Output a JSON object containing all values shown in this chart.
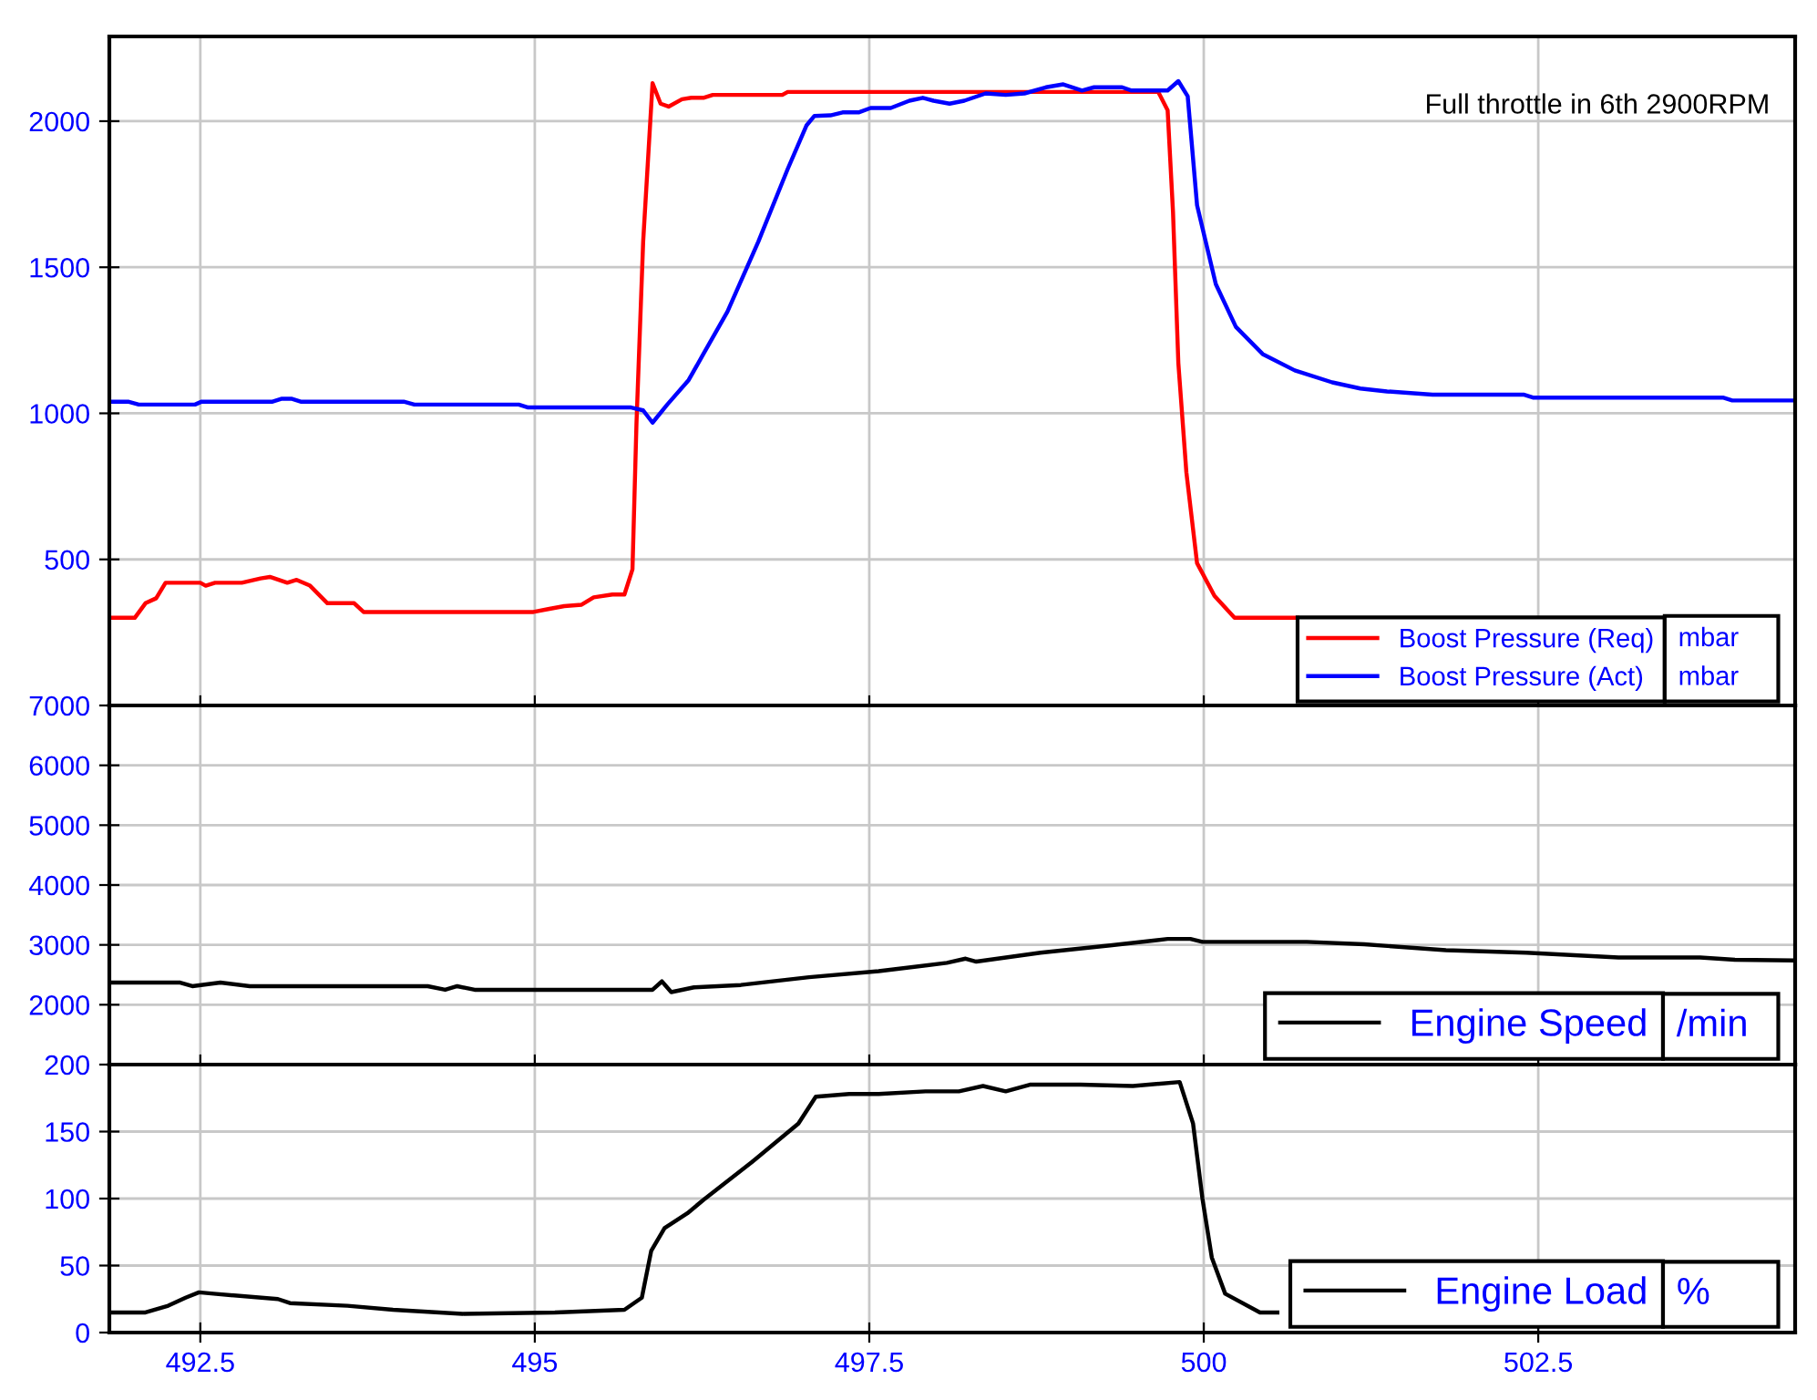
{
  "chart_data": [
    {
      "type": "line",
      "annotations": [
        "Full throttle in 6th 2900RPM"
      ],
      "ylabel": "mbar",
      "xlim": [
        491.82,
        504.42
      ],
      "xticks": [
        492.5,
        495,
        497.5,
        500,
        502.5
      ],
      "ylim": [
        0,
        2290
      ],
      "yticks": [
        500,
        1000,
        1500,
        2000
      ],
      "grid": true,
      "legend": "bottom right",
      "tick_labels": "y",
      "series": [
        {
          "name": "Boost Pressure (Req)",
          "color": "#ff0000",
          "x": [
            491.82,
            492.01,
            492.09,
            492.17,
            492.24,
            492.5,
            492.54,
            492.61,
            492.81,
            492.95,
            493.02,
            493.15,
            493.22,
            493.32,
            493.45,
            493.65,
            493.72,
            494.99,
            495.1,
            495.22,
            495.35,
            495.44,
            495.58,
            495.67,
            495.73,
            495.76,
            495.81,
            495.88,
            495.94,
            496.0,
            496.1,
            496.17,
            496.26,
            496.33,
            496.85,
            496.89,
            499.66,
            499.73,
            499.77,
            499.81,
            499.87,
            499.95,
            500.08,
            500.23,
            500.7
          ],
          "values": [
            300,
            300,
            350,
            367,
            420,
            420,
            410,
            420,
            420,
            435,
            440,
            420,
            430,
            410,
            350,
            350,
            320,
            320,
            330,
            340,
            345,
            370,
            380,
            380,
            466,
            967,
            1589,
            2130,
            2060,
            2050,
            2075,
            2080,
            2080,
            2090,
            2090,
            2100,
            2100,
            2037,
            1690,
            1172,
            798,
            487,
            375,
            300,
            300
          ]
        },
        {
          "name": "Boost Pressure (Act)",
          "color": "#0000ff",
          "x": [
            491.82,
            491.96,
            492.04,
            492.46,
            492.51,
            493.04,
            493.11,
            493.18,
            493.25,
            494.02,
            494.1,
            494.88,
            494.95,
            495.72,
            495.81,
            495.88,
            495.99,
            496.15,
            496.26,
            496.44,
            496.67,
            496.89,
            497.03,
            497.09,
            497.21,
            497.3,
            497.42,
            497.51,
            497.66,
            497.8,
            497.9,
            497.98,
            498.1,
            498.21,
            498.37,
            498.52,
            498.66,
            498.82,
            498.95,
            499.09,
            499.18,
            499.39,
            499.46,
            499.73,
            499.81,
            499.88,
            499.95,
            500.09,
            500.24,
            500.44,
            500.68,
            500.96,
            501.17,
            501.37,
            501.71,
            502.39,
            502.46,
            503.88,
            503.95,
            504.42
          ],
          "values": [
            1040,
            1040,
            1030,
            1030,
            1040,
            1040,
            1050,
            1050,
            1040,
            1040,
            1030,
            1030,
            1020,
            1020,
            1010,
            968,
            1030,
            1114,
            1203,
            1348,
            1587,
            1836,
            1985,
            2018,
            2020,
            2030,
            2030,
            2045,
            2045,
            2070,
            2080,
            2070,
            2060,
            2070,
            2095,
            2090,
            2095,
            2116,
            2126,
            2105,
            2116,
            2116,
            2105,
            2105,
            2137,
            2085,
            1712,
            1442,
            1296,
            1203,
            1147,
            1106,
            1085,
            1075,
            1064,
            1064,
            1054,
            1054,
            1044,
            1044
          ]
        }
      ]
    },
    {
      "type": "line",
      "ylabel": "/min",
      "xlim": [
        491.82,
        504.42
      ],
      "xticks": [
        492.5,
        495,
        497.5,
        500,
        502.5
      ],
      "ylim": [
        1000,
        7000
      ],
      "yticks": [
        2000,
        3000,
        4000,
        5000,
        6000,
        7000
      ],
      "grid": true,
      "legend": "bottom right",
      "tick_labels": "y",
      "series": [
        {
          "name": "Engine Speed",
          "color": "#000000",
          "x": [
            491.82,
            492.35,
            492.44,
            492.65,
            492.87,
            494.2,
            494.33,
            494.42,
            494.55,
            495.88,
            495.95,
            496.02,
            496.19,
            496.54,
            497.05,
            497.57,
            498.08,
            498.22,
            498.3,
            498.78,
            499.3,
            499.73,
            499.9,
            499.99,
            500.77,
            501.2,
            501.81,
            502.41,
            503.1,
            503.71,
            503.97,
            504.4
          ],
          "values": [
            2370,
            2370,
            2310,
            2370,
            2310,
            2310,
            2250,
            2310,
            2250,
            2250,
            2390,
            2210,
            2290,
            2330,
            2460,
            2560,
            2700,
            2770,
            2720,
            2870,
            2990,
            3100,
            3100,
            3050,
            3050,
            3010,
            2910,
            2870,
            2790,
            2790,
            2750,
            2740
          ]
        }
      ]
    },
    {
      "type": "line",
      "ylabel": "%",
      "xlim": [
        491.82,
        504.42
      ],
      "xticks": [
        492.5,
        495,
        497.5,
        500,
        502.5
      ],
      "ylim": [
        0,
        200
      ],
      "yticks": [
        0,
        50,
        100,
        150,
        200
      ],
      "grid": true,
      "legend": "bottom right",
      "series": [
        {
          "name": "Engine Load",
          "color": "#000000",
          "x": [
            491.82,
            492.09,
            492.26,
            492.39,
            492.49,
            492.6,
            493.08,
            493.17,
            493.6,
            493.94,
            494.46,
            495.15,
            495.67,
            495.8,
            495.87,
            495.97,
            496.14,
            496.26,
            496.62,
            496.97,
            497.1,
            497.35,
            497.57,
            497.92,
            498.17,
            498.35,
            498.52,
            498.7,
            499.08,
            499.47,
            499.82,
            499.92,
            499.99,
            500.06,
            500.16,
            500.42,
            500.55
          ],
          "values": [
            15,
            15,
            20,
            26,
            30,
            29,
            25,
            22,
            20,
            17,
            14,
            15,
            17,
            26,
            61,
            78,
            89,
            99,
            127,
            156,
            176,
            178,
            178,
            180,
            180,
            184,
            180,
            185,
            185,
            184,
            187,
            156,
            100,
            56,
            29,
            15,
            15
          ]
        }
      ]
    }
  ]
}
